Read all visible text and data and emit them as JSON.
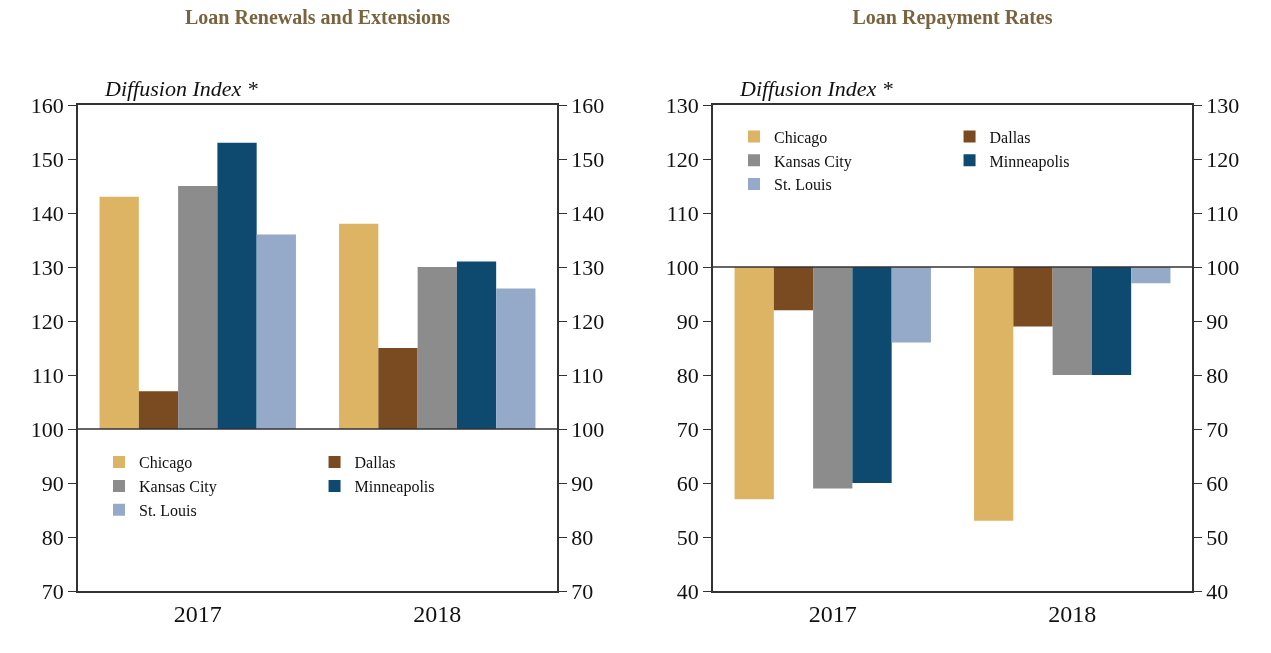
{
  "chart_data": [
    {
      "type": "bar",
      "title": "Loan Renewals and Extensions",
      "ylabel": "Diffusion Index *",
      "categories": [
        "2017",
        "2018"
      ],
      "series": [
        {
          "name": "Chicago",
          "color": "#dcb464",
          "base": [
            100,
            100
          ],
          "values": [
            43,
            38
          ]
        },
        {
          "name": "Dallas",
          "color": "#7a4a20",
          "base": [
            100,
            100
          ],
          "values": [
            7,
            15
          ]
        },
        {
          "name": "Kansas City",
          "color": "#8c8c8c",
          "base": [
            100,
            100
          ],
          "values": [
            45,
            30
          ]
        },
        {
          "name": "Minneapolis",
          "color": "#0e4a70",
          "base": [
            100,
            100
          ],
          "values": [
            53,
            31
          ]
        },
        {
          "name": "St. Louis",
          "color": "#94aac8",
          "base": [
            100,
            100
          ],
          "values": [
            36,
            26
          ]
        }
      ],
      "ylim": [
        70,
        160
      ],
      "yticks": [
        70,
        80,
        90,
        100,
        110,
        120,
        130,
        140,
        150,
        160
      ],
      "y2lim": [
        70,
        160
      ],
      "y2ticks": [
        70,
        80,
        90,
        100,
        110,
        120,
        130,
        140,
        150,
        160
      ],
      "legend": "bottom"
    },
    {
      "type": "bar",
      "title": "Loan Repayment Rates",
      "ylabel": "Diffusion Index *",
      "categories": [
        "2017",
        "2018"
      ],
      "series": [
        {
          "name": "Chicago",
          "color": "#dcb464",
          "base": [
            100,
            100
          ],
          "values": [
            -43,
            -47
          ]
        },
        {
          "name": "Dallas",
          "color": "#7a4a20",
          "base": [
            100,
            100
          ],
          "values": [
            -8,
            -11
          ]
        },
        {
          "name": "Kansas City",
          "color": "#8c8c8c",
          "base": [
            100,
            100
          ],
          "values": [
            -41,
            -20
          ]
        },
        {
          "name": "Minneapolis",
          "color": "#0e4a70",
          "base": [
            100,
            100
          ],
          "values": [
            -40,
            -20
          ]
        },
        {
          "name": "St. Louis",
          "color": "#94aac8",
          "base": [
            100,
            100
          ],
          "values": [
            -14,
            -3
          ]
        }
      ],
      "ylim": [
        40,
        130
      ],
      "yticks": [
        40,
        50,
        60,
        70,
        80,
        90,
        100,
        110,
        120,
        130
      ],
      "y2lim": [
        40,
        130
      ],
      "y2ticks": [
        40,
        50,
        60,
        70,
        80,
        90,
        100,
        110,
        120,
        130
      ],
      "legend": "top"
    }
  ]
}
